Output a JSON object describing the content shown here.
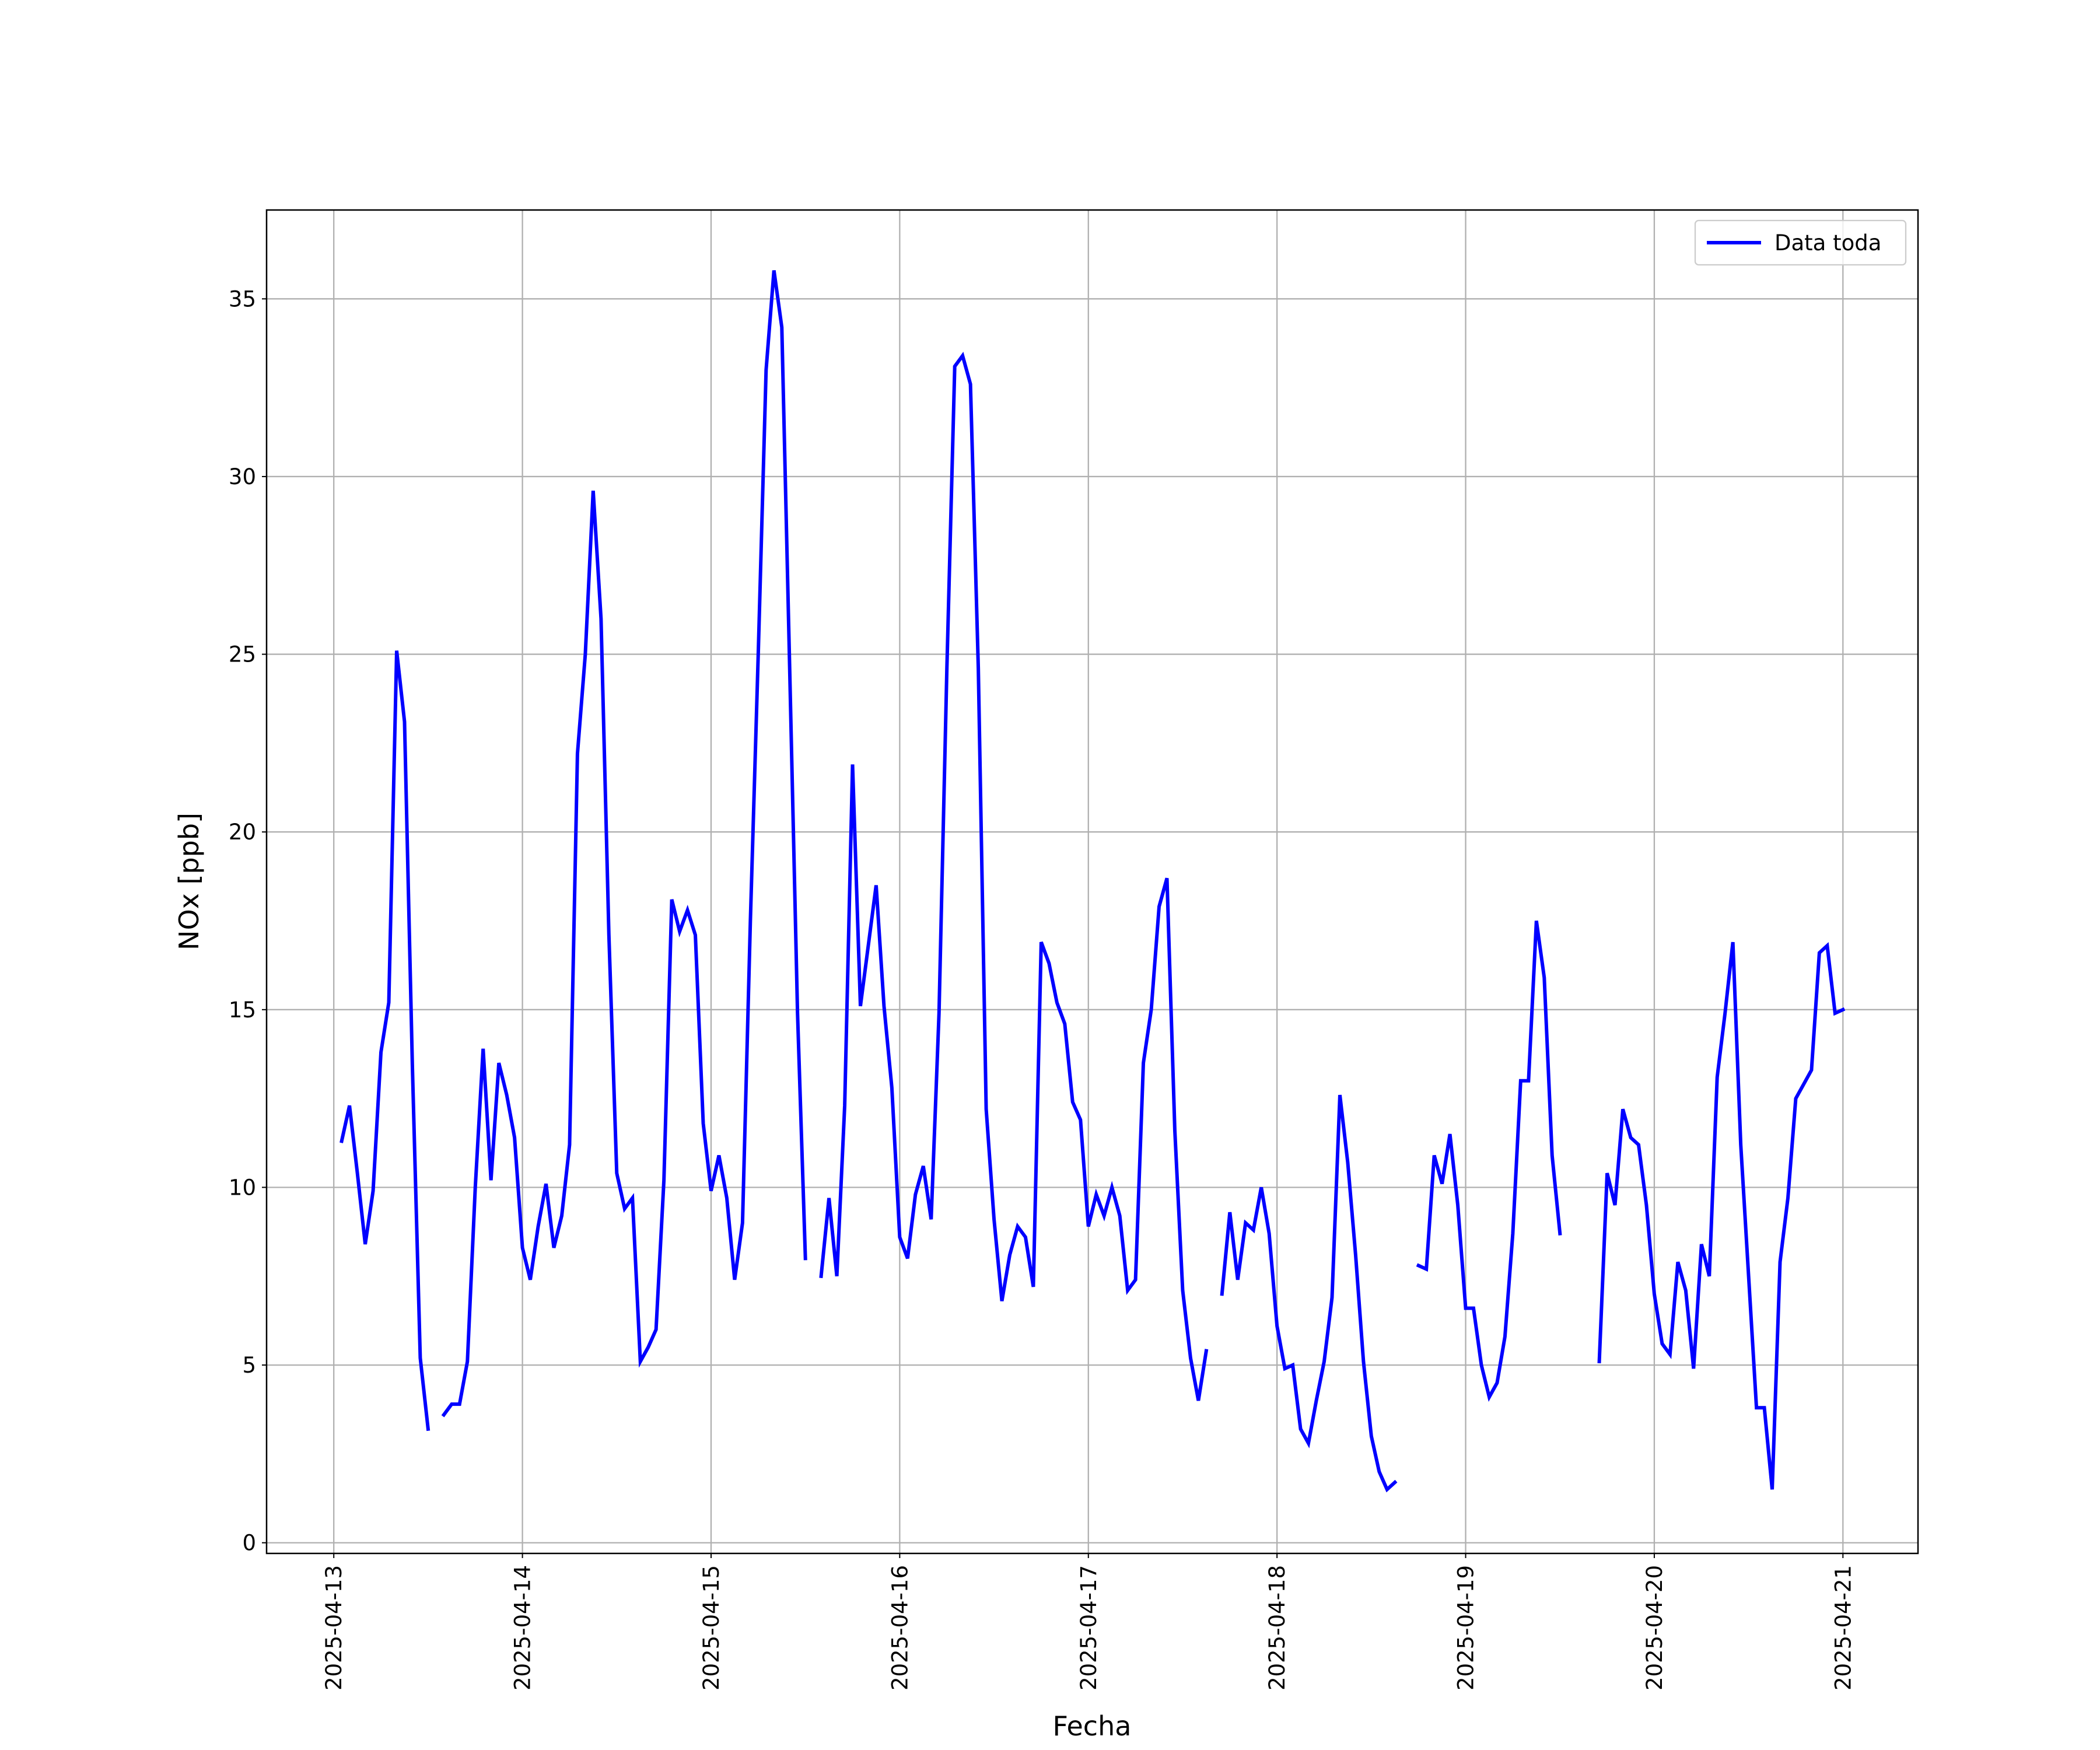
{
  "chart_data": {
    "type": "line",
    "xlabel": "Fecha",
    "ylabel": "NOx [ppb]",
    "x": [
      1,
      2,
      3,
      4,
      5,
      6,
      7,
      8,
      9,
      10,
      11,
      12,
      13,
      14,
      15,
      16,
      17,
      18,
      19,
      20,
      21,
      22,
      23,
      24,
      25,
      26,
      27,
      28,
      29,
      30,
      31,
      32,
      33,
      34,
      35,
      36,
      37,
      38,
      39,
      40,
      41,
      42,
      43,
      44,
      45,
      46,
      47,
      48,
      49,
      50,
      51,
      52,
      53,
      54,
      55,
      56,
      57,
      58,
      59,
      60,
      61,
      62,
      63,
      64,
      65,
      66,
      67,
      68,
      69,
      70,
      71,
      72,
      73,
      74,
      75,
      76,
      77,
      78,
      79,
      80,
      81,
      82,
      83,
      84,
      85,
      86,
      87,
      88,
      89,
      90,
      91,
      92,
      93,
      94,
      95,
      96,
      97,
      98,
      99,
      100,
      101,
      102,
      103,
      104,
      105,
      106,
      107,
      108,
      109,
      110,
      111,
      112,
      113,
      114,
      115,
      116,
      117,
      118,
      119,
      120,
      121,
      122,
      123,
      124,
      125,
      126,
      127,
      128,
      129,
      130,
      131,
      132,
      133,
      134,
      135,
      136,
      137,
      138,
      139,
      140,
      141,
      142,
      143,
      144,
      145,
      146,
      147,
      148,
      149,
      150,
      151,
      152,
      153,
      154,
      155,
      156,
      157,
      158,
      159,
      160,
      161,
      162,
      163,
      164,
      165,
      166,
      167,
      168,
      169,
      170,
      171,
      172,
      173,
      174,
      175,
      176,
      177,
      178,
      179,
      180,
      181,
      182,
      183,
      184,
      185,
      186,
      187,
      188,
      189,
      190,
      191,
      192
    ],
    "series": [
      {
        "name": "Data toda",
        "color": "#0000ff",
        "values": [
          11.3,
          12.3,
          10.4,
          8.4,
          9.9,
          13.8,
          15.2,
          25.1,
          23.1,
          13.4,
          5.2,
          3.2,
          null,
          3.6,
          3.9,
          3.9,
          5.1,
          10.0,
          13.9,
          10.2,
          13.5,
          12.6,
          11.4,
          8.3,
          7.4,
          8.9,
          10.1,
          8.3,
          9.2,
          11.2,
          22.2,
          25.0,
          29.6,
          26.0,
          17.1,
          10.4,
          9.4,
          9.7,
          5.1,
          5.5,
          6.0,
          10.2,
          18.1,
          17.2,
          17.8,
          17.1,
          11.8,
          9.9,
          10.9,
          9.7,
          7.4,
          9.0,
          17.5,
          25.0,
          33.0,
          35.8,
          34.2,
          24.6,
          14.9,
          8.0,
          null,
          7.5,
          9.7,
          7.5,
          12.3,
          21.9,
          15.1,
          16.8,
          18.5,
          15.1,
          12.8,
          8.6,
          8.0,
          9.8,
          10.6,
          9.1,
          14.9,
          24.6,
          33.1,
          33.4,
          32.6,
          24.6,
          12.2,
          9.1,
          6.8,
          8.1,
          8.9,
          8.6,
          7.2,
          16.9,
          16.3,
          15.2,
          14.6,
          12.4,
          11.9,
          8.9,
          9.8,
          9.2,
          10.0,
          9.2,
          7.1,
          7.4,
          13.5,
          15.0,
          17.9,
          18.7,
          11.6,
          7.1,
          5.2,
          4.0,
          5.4,
          null,
          7.0,
          9.3,
          7.4,
          9.0,
          8.8,
          10.0,
          8.7,
          6.1,
          4.9,
          5.0,
          3.2,
          2.8,
          4.0,
          5.1,
          6.9,
          12.6,
          10.7,
          8.1,
          5.1,
          3.0,
          2.0,
          1.5,
          1.7,
          null,
          null,
          7.8,
          7.7,
          10.9,
          10.1,
          11.5,
          9.5,
          6.6,
          6.6,
          5.0,
          4.1,
          4.5,
          5.8,
          8.7,
          13.0,
          13.0,
          17.5,
          15.9,
          10.9,
          8.7,
          null,
          null,
          null,
          null,
          5.1,
          10.4,
          9.5,
          12.2,
          11.4,
          11.2,
          9.5,
          7.0,
          5.6,
          5.3,
          7.9,
          7.1,
          4.9,
          8.4,
          7.5,
          13.1,
          14.9,
          16.9,
          11.2,
          7.5,
          3.8,
          3.8,
          1.5,
          7.9,
          9.7,
          12.5,
          12.9,
          13.3,
          16.6,
          16.8,
          14.9,
          15.0
        ]
      }
    ],
    "xlim": [
      -8.55,
      201.55
    ],
    "xticks": [
      {
        "value": 0,
        "label": "2025-04-13"
      },
      {
        "value": 24,
        "label": "2025-04-14"
      },
      {
        "value": 48,
        "label": "2025-04-15"
      },
      {
        "value": 72,
        "label": "2025-04-16"
      },
      {
        "value": 96,
        "label": "2025-04-17"
      },
      {
        "value": 120,
        "label": "2025-04-18"
      },
      {
        "value": 144,
        "label": "2025-04-19"
      },
      {
        "value": 168,
        "label": "2025-04-20"
      },
      {
        "value": 192,
        "label": "2025-04-21"
      }
    ],
    "ylim": [
      -0.3,
      37.5
    ],
    "yticks": [
      0,
      5,
      10,
      15,
      20,
      25,
      30,
      35
    ],
    "grid": true,
    "legend": "upper right"
  }
}
